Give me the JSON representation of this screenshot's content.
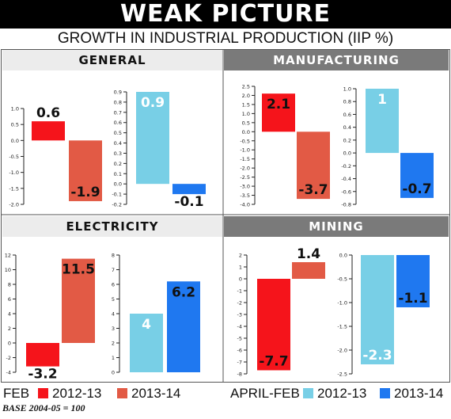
{
  "title": "WEAK PICTURE",
  "subtitle": "GROWTH IN INDUSTRIAL PRODUCTION (IIP %)",
  "colors": {
    "feb_2012_13": "#f5141b",
    "feb_2013_14": "#e25a45",
    "aprfeb_2012_13": "#78cfe6",
    "aprfeb_2013_14": "#1f78f0"
  },
  "legend": {
    "feb_label": "FEB",
    "feb_2012_13": "2012-13",
    "feb_2013_14": "2013-14",
    "aprfeb_label": "APRIL-FEB",
    "aprfeb_2012_13": "2012-13",
    "aprfeb_2013_14": "2013-14"
  },
  "footnote": "BASE 2004-05 = 100",
  "chart_data": [
    {
      "type": "bar",
      "panel": "GENERAL",
      "period": "FEB",
      "categories": [
        "2012-13",
        "2013-14"
      ],
      "values": [
        0.6,
        -1.9
      ],
      "value_labels": [
        "0.6",
        "-1.9"
      ],
      "ylim": [
        -2.0,
        1.0
      ],
      "yticks": [
        "1.0",
        "0.5",
        "0.0",
        "-0.5",
        "-1.0",
        "-1.5",
        "-2.0"
      ]
    },
    {
      "type": "bar",
      "panel": "GENERAL",
      "period": "APRIL-FEB",
      "categories": [
        "2012-13",
        "2013-14"
      ],
      "values": [
        0.9,
        -0.1
      ],
      "value_labels": [
        "0.9",
        "-0.1"
      ],
      "ylim": [
        -0.2,
        0.9
      ],
      "yticks": [
        "0.9",
        "0.8",
        "0.7",
        "0.6",
        "0.5",
        "0.4",
        "0.3",
        "0.2",
        "0.1",
        "0.0",
        "-0.1",
        "-0.2"
      ]
    },
    {
      "type": "bar",
      "panel": "MANUFACTURING",
      "period": "FEB",
      "categories": [
        "2012-13",
        "2013-14"
      ],
      "values": [
        2.1,
        -3.7
      ],
      "value_labels": [
        "2.1",
        "-3.7"
      ],
      "ylim": [
        -4.0,
        2.5
      ],
      "yticks": [
        "2.5",
        "2.0",
        "1.5",
        "1.0",
        "0.5",
        "0.0",
        "-0.5",
        "-1.0",
        "-1.5",
        "-2.0",
        "-2.5",
        "-3.0",
        "-3.5",
        "-4.0"
      ]
    },
    {
      "type": "bar",
      "panel": "MANUFACTURING",
      "period": "APRIL-FEB",
      "categories": [
        "2012-13",
        "2013-14"
      ],
      "values": [
        1.0,
        -0.7
      ],
      "value_labels": [
        "1",
        "-0.7"
      ],
      "ylim": [
        -0.8,
        1.0
      ],
      "yticks": [
        "1.0",
        "0.8",
        "0.6",
        "0.4",
        "0.2",
        "0.0",
        "-0.2",
        "-0.4",
        "-0.6",
        "-0.8"
      ]
    },
    {
      "type": "bar",
      "panel": "ELECTRICITY",
      "period": "FEB",
      "categories": [
        "2012-13",
        "2013-14"
      ],
      "values": [
        -3.2,
        11.5
      ],
      "value_labels": [
        "-3.2",
        "11.5"
      ],
      "ylim": [
        -4,
        12
      ],
      "yticks": [
        "12",
        "10",
        "8",
        "6",
        "4",
        "2",
        "0",
        "-2",
        "-4"
      ]
    },
    {
      "type": "bar",
      "panel": "ELECTRICITY",
      "period": "APRIL-FEB",
      "categories": [
        "2012-13",
        "2013-14"
      ],
      "values": [
        4.0,
        6.2
      ],
      "value_labels": [
        "4",
        "6.2"
      ],
      "ylim": [
        0,
        8
      ],
      "yticks": [
        "8",
        "7",
        "6",
        "5",
        "4",
        "3",
        "2",
        "1",
        "0"
      ]
    },
    {
      "type": "bar",
      "panel": "MINING",
      "period": "FEB",
      "categories": [
        "2012-13",
        "2013-14"
      ],
      "values": [
        -7.7,
        1.4
      ],
      "value_labels": [
        "-7.7",
        "1.4"
      ],
      "ylim": [
        -8,
        2
      ],
      "yticks": [
        "2",
        "1",
        "0",
        "-1",
        "-2",
        "-3",
        "-4",
        "-5",
        "-6",
        "-7",
        "-8"
      ]
    },
    {
      "type": "bar",
      "panel": "MINING",
      "period": "APRIL-FEB",
      "categories": [
        "2012-13",
        "2013-14"
      ],
      "values": [
        -2.3,
        -1.1
      ],
      "value_labels": [
        "-2.3",
        "-1.1"
      ],
      "ylim": [
        -2.5,
        0.0
      ],
      "yticks": [
        "0.0",
        "-0.5",
        "-1.0",
        "-1.5",
        "-2.0",
        "-2.5"
      ]
    }
  ]
}
